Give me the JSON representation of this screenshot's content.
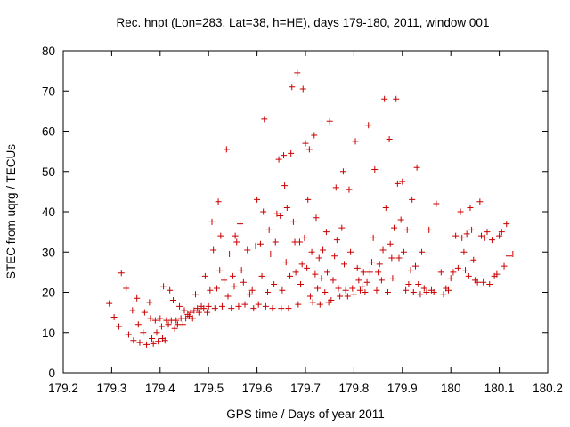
{
  "chart_data": {
    "type": "scatter",
    "title": "Rec. hnpt (Lon=283, Lat=38, h=HE), days 179-180, 2011, window 001",
    "xlabel": "GPS time / Days of year 2011",
    "ylabel": "STEC from uqrg / TECUs",
    "xlim": [
      179.2,
      180.2
    ],
    "ylim": [
      0,
      80
    ],
    "xticks": [
      "179.2",
      "179.3",
      "179.4",
      "179.5",
      "179.6",
      "179.7",
      "179.8",
      "179.9",
      "180",
      "180.1",
      "180.2"
    ],
    "yticks": [
      "0",
      "10",
      "20",
      "30",
      "40",
      "50",
      "60",
      "70",
      "80"
    ],
    "grid": false,
    "legend": "none",
    "marker": "plus",
    "color": "#cc0000",
    "series": [
      {
        "points": [
          [
            179.295,
            17.2
          ],
          [
            179.305,
            13.8
          ],
          [
            179.315,
            11.5
          ],
          [
            179.32,
            24.8
          ],
          [
            179.33,
            21.0
          ],
          [
            179.335,
            9.5
          ],
          [
            179.343,
            15.5
          ],
          [
            179.345,
            8.0
          ],
          [
            179.352,
            18.5
          ],
          [
            179.355,
            12.0
          ],
          [
            179.358,
            7.5
          ],
          [
            179.365,
            10.0
          ],
          [
            179.368,
            15.0
          ],
          [
            179.372,
            7.0
          ],
          [
            179.378,
            17.5
          ],
          [
            179.38,
            13.5
          ],
          [
            179.383,
            8.5
          ],
          [
            179.386,
            7.2
          ],
          [
            179.39,
            13.0
          ],
          [
            179.393,
            10.0
          ],
          [
            179.396,
            7.8
          ],
          [
            179.4,
            13.5
          ],
          [
            179.403,
            11.5
          ],
          [
            179.405,
            8.5
          ],
          [
            179.407,
            21.5
          ],
          [
            179.41,
            8.0
          ],
          [
            179.413,
            13.0
          ],
          [
            179.417,
            12.0
          ],
          [
            179.42,
            20.5
          ],
          [
            179.423,
            13.0
          ],
          [
            179.427,
            18.0
          ],
          [
            179.43,
            11.0
          ],
          [
            179.433,
            13.0
          ],
          [
            179.436,
            12.0
          ],
          [
            179.44,
            16.5
          ],
          [
            179.443,
            13.5
          ],
          [
            179.447,
            12.0
          ],
          [
            179.45,
            15.5
          ],
          [
            179.453,
            13.5
          ],
          [
            179.457,
            14.5
          ],
          [
            179.46,
            14.0
          ],
          [
            179.463,
            15.0
          ],
          [
            179.467,
            13.5
          ],
          [
            179.47,
            15.5
          ],
          [
            179.473,
            19.5
          ],
          [
            179.477,
            16.0
          ],
          [
            179.48,
            15.0
          ],
          [
            179.485,
            16.5
          ],
          [
            179.49,
            16.0
          ],
          [
            179.493,
            24.0
          ],
          [
            179.497,
            15.0
          ],
          [
            179.5,
            16.5
          ],
          [
            179.503,
            20.5
          ],
          [
            179.507,
            37.5
          ],
          [
            179.51,
            30.5
          ],
          [
            179.513,
            16.0
          ],
          [
            179.517,
            21.0
          ],
          [
            179.52,
            42.5
          ],
          [
            179.523,
            25.5
          ],
          [
            179.525,
            34.0
          ],
          [
            179.528,
            16.5
          ],
          [
            179.532,
            23.0
          ],
          [
            179.537,
            55.5
          ],
          [
            179.54,
            19.0
          ],
          [
            179.543,
            29.5
          ],
          [
            179.547,
            16.0
          ],
          [
            179.55,
            24.0
          ],
          [
            179.553,
            21.5
          ],
          [
            179.555,
            34.0
          ],
          [
            179.558,
            32.5
          ],
          [
            179.562,
            16.5
          ],
          [
            179.565,
            37.0
          ],
          [
            179.568,
            25.5
          ],
          [
            179.572,
            22.5
          ],
          [
            179.575,
            17.0
          ],
          [
            179.58,
            30.5
          ],
          [
            179.585,
            19.5
          ],
          [
            179.59,
            20.5
          ],
          [
            179.593,
            16.0
          ],
          [
            179.597,
            31.5
          ],
          [
            179.6,
            43.0
          ],
          [
            179.603,
            17.0
          ],
          [
            179.607,
            32.0
          ],
          [
            179.61,
            24.0
          ],
          [
            179.613,
            40.0
          ],
          [
            179.615,
            63.0
          ],
          [
            179.618,
            16.5
          ],
          [
            179.622,
            20.0
          ],
          [
            179.625,
            35.5
          ],
          [
            179.628,
            29.5
          ],
          [
            179.632,
            16.0
          ],
          [
            179.635,
            22.0
          ],
          [
            179.638,
            32.5
          ],
          [
            179.641,
            39.5
          ],
          [
            179.645,
            53.0
          ],
          [
            179.648,
            39.0
          ],
          [
            179.65,
            16.0
          ],
          [
            179.652,
            20.5
          ],
          [
            179.655,
            54.0
          ],
          [
            179.657,
            46.5
          ],
          [
            179.66,
            27.5
          ],
          [
            179.662,
            41.0
          ],
          [
            179.665,
            16.0
          ],
          [
            179.668,
            24.0
          ],
          [
            179.67,
            54.5
          ],
          [
            179.672,
            71.0
          ],
          [
            179.675,
            37.5
          ],
          [
            179.678,
            32.5
          ],
          [
            179.68,
            25.0
          ],
          [
            179.683,
            74.5
          ],
          [
            179.685,
            17.0
          ],
          [
            179.688,
            32.5
          ],
          [
            179.69,
            22.0
          ],
          [
            179.693,
            27.0
          ],
          [
            179.695,
            70.5
          ],
          [
            179.698,
            33.5
          ],
          [
            179.7,
            57.0
          ],
          [
            179.703,
            26.0
          ],
          [
            179.705,
            43.0
          ],
          [
            179.708,
            55.5
          ],
          [
            179.71,
            19.0
          ],
          [
            179.713,
            30.0
          ],
          [
            179.715,
            17.5
          ],
          [
            179.718,
            59.0
          ],
          [
            179.72,
            24.5
          ],
          [
            179.722,
            38.5
          ],
          [
            179.725,
            21.0
          ],
          [
            179.728,
            28.5
          ],
          [
            179.73,
            17.0
          ],
          [
            179.733,
            23.5
          ],
          [
            179.736,
            30.5
          ],
          [
            179.74,
            20.0
          ],
          [
            179.743,
            35.0
          ],
          [
            179.745,
            25.0
          ],
          [
            179.748,
            17.5
          ],
          [
            179.75,
            62.5
          ],
          [
            179.753,
            18.0
          ],
          [
            179.757,
            23.0
          ],
          [
            179.76,
            29.0
          ],
          [
            179.763,
            46.0
          ],
          [
            179.765,
            33.0
          ],
          [
            179.768,
            21.0
          ],
          [
            179.771,
            19.0
          ],
          [
            179.775,
            36.0
          ],
          [
            179.778,
            50.0
          ],
          [
            179.78,
            27.0
          ],
          [
            179.783,
            20.5
          ],
          [
            179.787,
            19.0
          ],
          [
            179.79,
            45.5
          ],
          [
            179.793,
            30.0
          ],
          [
            179.797,
            21.0
          ],
          [
            179.8,
            19.5
          ],
          [
            179.803,
            57.5
          ],
          [
            179.807,
            26.0
          ],
          [
            179.81,
            23.0
          ],
          [
            179.813,
            20.5
          ],
          [
            179.817,
            21.5
          ],
          [
            179.82,
            25.0
          ],
          [
            179.823,
            20.0
          ],
          [
            179.827,
            22.5
          ],
          [
            179.83,
            61.5
          ],
          [
            179.833,
            25.0
          ],
          [
            179.837,
            27.5
          ],
          [
            179.84,
            33.5
          ],
          [
            179.843,
            50.5
          ],
          [
            179.847,
            20.5
          ],
          [
            179.85,
            25.0
          ],
          [
            179.853,
            27.0
          ],
          [
            179.857,
            23.0
          ],
          [
            179.86,
            30.5
          ],
          [
            179.863,
            68.0
          ],
          [
            179.866,
            41.0
          ],
          [
            179.87,
            20.0
          ],
          [
            179.873,
            58.0
          ],
          [
            179.875,
            32.0
          ],
          [
            179.878,
            28.5
          ],
          [
            179.88,
            23.5
          ],
          [
            179.883,
            36.0
          ],
          [
            179.887,
            68.0
          ],
          [
            179.89,
            47.0
          ],
          [
            179.893,
            28.5
          ],
          [
            179.897,
            38.0
          ],
          [
            179.9,
            47.5
          ],
          [
            179.903,
            30.0
          ],
          [
            179.907,
            20.5
          ],
          [
            179.91,
            35.5
          ],
          [
            179.913,
            22.0
          ],
          [
            179.917,
            25.5
          ],
          [
            179.92,
            43.0
          ],
          [
            179.923,
            20.0
          ],
          [
            179.927,
            26.5
          ],
          [
            179.93,
            51.0
          ],
          [
            179.933,
            22.0
          ],
          [
            179.937,
            19.5
          ],
          [
            179.94,
            30.0
          ],
          [
            179.945,
            21.0
          ],
          [
            179.95,
            20.0
          ],
          [
            179.955,
            35.5
          ],
          [
            179.96,
            20.5
          ],
          [
            179.965,
            20.0
          ],
          [
            179.97,
            42.0
          ],
          [
            179.98,
            25.0
          ],
          [
            179.985,
            19.5
          ],
          [
            179.99,
            21.0
          ],
          [
            179.995,
            20.5
          ],
          [
            180.0,
            23.5
          ],
          [
            180.005,
            25.0
          ],
          [
            180.01,
            34.0
          ],
          [
            180.015,
            26.0
          ],
          [
            180.02,
            40.0
          ],
          [
            180.023,
            33.5
          ],
          [
            180.027,
            30.0
          ],
          [
            180.03,
            25.5
          ],
          [
            180.033,
            34.5
          ],
          [
            180.037,
            24.0
          ],
          [
            180.04,
            41.0
          ],
          [
            180.043,
            35.5
          ],
          [
            180.047,
            28.0
          ],
          [
            180.05,
            23.0
          ],
          [
            180.055,
            22.5
          ],
          [
            180.06,
            42.5
          ],
          [
            180.063,
            34.0
          ],
          [
            180.067,
            22.5
          ],
          [
            180.07,
            33.5
          ],
          [
            180.075,
            35.0
          ],
          [
            180.08,
            22.0
          ],
          [
            180.085,
            33.0
          ],
          [
            180.09,
            24.0
          ],
          [
            180.095,
            24.5
          ],
          [
            180.1,
            34.0
          ],
          [
            180.105,
            35.0
          ],
          [
            180.11,
            26.5
          ],
          [
            180.115,
            37.0
          ],
          [
            180.12,
            29.0
          ],
          [
            180.128,
            29.5
          ]
        ]
      }
    ]
  }
}
